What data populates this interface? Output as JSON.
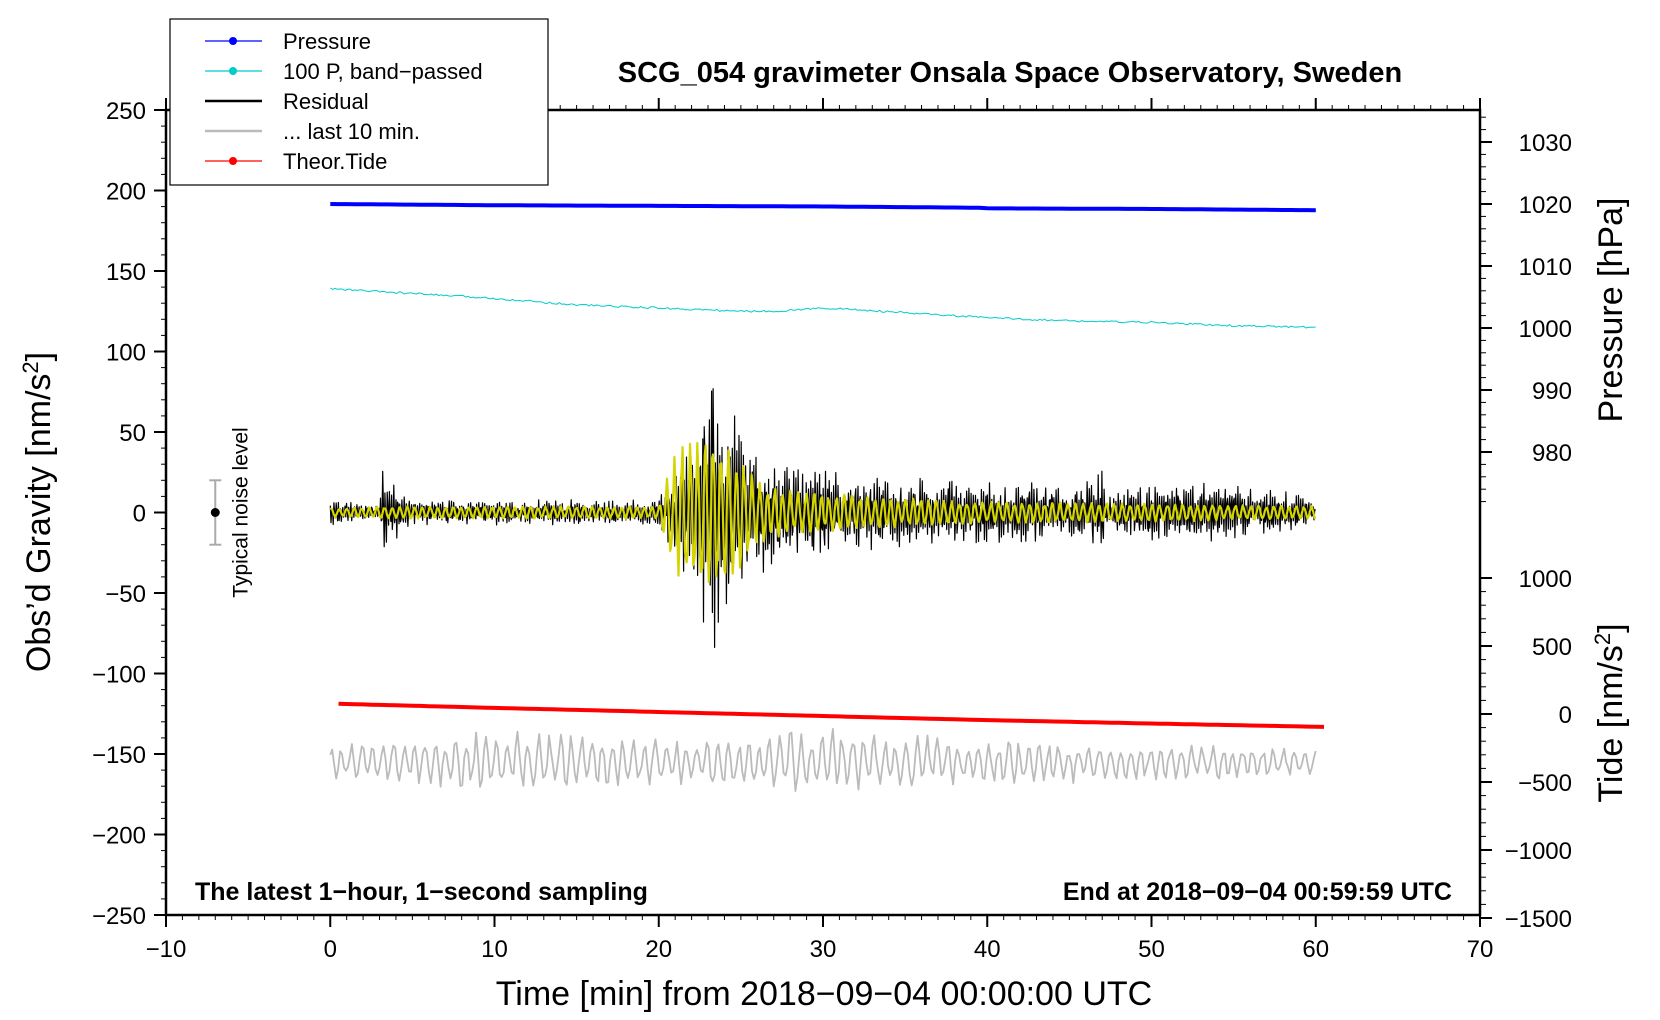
{
  "chart_data": {
    "type": "line",
    "title": "SCG_054 gravimeter Onsala Space Observatory, Sweden",
    "xlabel": "Time [min] from 2018−09−04 00:00:00 UTC",
    "ylabel_left": "Obs’d Gravity [nm/s²]",
    "ylabel_right_top": "Pressure [hPa]",
    "ylabel_right_bottom": "Tide [nm/s²]",
    "annotation_left": "The latest 1−hour, 1−second sampling",
    "annotation_right": "End at 2018−09−04 00:59:59 UTC",
    "noise_label": "Typical noise level",
    "noise_level": {
      "x": -7,
      "center": 0,
      "halfwidth": 20
    },
    "xlim": [
      -10,
      70
    ],
    "ylim_left": [
      -250,
      250
    ],
    "ylim_pressure": [
      970,
      1035
    ],
    "ylim_tide": [
      -1500,
      1500
    ],
    "x_ticks": [
      -10,
      0,
      10,
      20,
      30,
      40,
      50,
      60,
      70
    ],
    "x_tick_labels": [
      "−10",
      "0",
      "10",
      "20",
      "30",
      "40",
      "50",
      "60",
      "70"
    ],
    "y_ticks_left": [
      250,
      200,
      150,
      100,
      50,
      0,
      -50,
      -100,
      -150,
      -200,
      -250
    ],
    "y_tick_labels_left": [
      "250",
      "200",
      "150",
      "100",
      "50",
      "0",
      "−50",
      "−100",
      "−150",
      "−200",
      "−250"
    ],
    "pressure_ticks": [
      1030,
      1020,
      1010,
      1000,
      990,
      980
    ],
    "pressure_tick_labels": [
      "1030",
      "1020",
      "1010",
      "1000",
      "990",
      "980"
    ],
    "tide_ticks": [
      1000,
      500,
      0,
      -500,
      -1000,
      -1500
    ],
    "tide_tick_labels": [
      "1000",
      "500",
      "0",
      "−500",
      "−1000",
      "−1500"
    ],
    "legend": [
      {
        "name": "Pressure",
        "color": "#0000ff",
        "marker": true
      },
      {
        "name": "100 P, band−passed",
        "color": "#00cccc",
        "marker": true
      },
      {
        "name": "Residual",
        "color": "#000000",
        "marker": false
      },
      {
        "name": "... last 10 min.",
        "color": "#bbbbbb",
        "marker": false
      },
      {
        "name": "Theor.Tide",
        "color": "#ff0000",
        "marker": true
      }
    ],
    "series": [
      {
        "name": "Pressure",
        "axis": "pressure",
        "color": "#0000ff",
        "x": [
          0,
          5,
          10,
          20,
          30,
          39.5,
          40,
          50,
          60
        ],
        "values": [
          1020.0,
          1019.9,
          1019.8,
          1019.7,
          1019.6,
          1019.4,
          1019.3,
          1019.2,
          1019.0
        ]
      },
      {
        "name": "100 P, band−passed",
        "axis": "gravity",
        "color": "#00cccc",
        "x": [
          0,
          5,
          10,
          15,
          20,
          25,
          27,
          30,
          32,
          35,
          40,
          45,
          50,
          55,
          60
        ],
        "values": [
          139,
          136,
          133,
          129,
          127,
          125,
          125,
          127,
          126,
          124,
          121,
          119,
          118,
          116,
          115
        ]
      },
      {
        "name": "Residual",
        "axis": "gravity",
        "color": "#000000",
        "x": [
          0,
          3,
          3.2,
          5,
          10,
          15,
          20,
          20.8,
          21.5,
          22.2,
          22.8,
          23.3,
          23.8,
          24.3,
          25,
          26,
          27,
          28,
          29,
          30,
          32,
          35,
          40,
          45,
          47,
          47.2,
          50,
          55,
          60
        ],
        "values": [
          8,
          5,
          30,
          8,
          8,
          8,
          8,
          25,
          55,
          55,
          80,
          88,
          80,
          70,
          55,
          40,
          35,
          30,
          32,
          28,
          25,
          22,
          20,
          18,
          26,
          12,
          20,
          18,
          10
        ],
        "envelope": "upper"
      },
      {
        "name": "Residual (band−passed)",
        "axis": "gravity",
        "color": "#d4d400",
        "x": [
          0,
          5,
          10,
          15,
          20,
          20.8,
          21.5,
          22.5,
          23.3,
          24,
          25,
          26,
          28,
          30,
          32,
          35,
          40,
          50,
          60
        ],
        "values": [
          3,
          4,
          4,
          4,
          4,
          35,
          45,
          48,
          50,
          45,
          35,
          20,
          14,
          12,
          11,
          9,
          7,
          6,
          4
        ],
        "envelope": "amplitude"
      },
      {
        "name": "... last 10 min.",
        "axis": "gravity",
        "color": "#bbbbbb",
        "x": [
          0,
          10,
          20,
          30,
          40,
          50,
          60
        ],
        "offset": -155,
        "values": [
          8,
          14,
          12,
          16,
          10,
          9,
          7
        ],
        "envelope": "amplitude"
      },
      {
        "name": "Theor.Tide",
        "axis": "tide",
        "color": "#ff0000",
        "x": [
          0.5,
          10,
          20,
          30,
          40,
          50,
          60.5
        ],
        "values": [
          75,
          45,
          15,
          -15,
          -45,
          -70,
          -95
        ]
      }
    ]
  }
}
